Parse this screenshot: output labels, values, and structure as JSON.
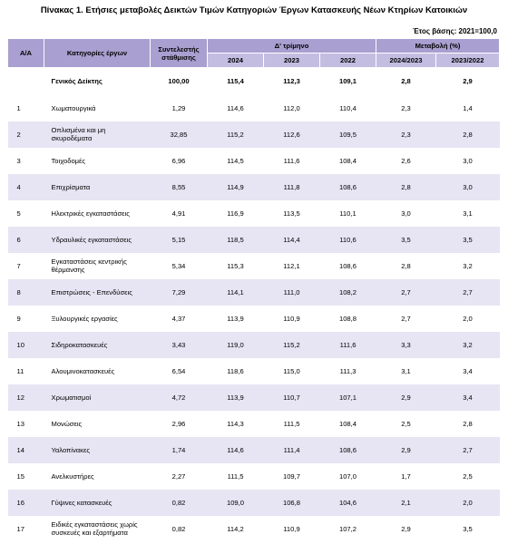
{
  "title": "Πίνακας 1. Ετήσιες μεταβολές Δεικτών Τιμών Κατηγοριών Έργων Κατασκευής Νέων Κτηρίων Κατοικιών",
  "base_note": "Έτος βάσης: 2021=100,0",
  "table": {
    "header": {
      "aa": "Α/Α",
      "category": "Κατηγορίες έργων",
      "weight": "Συντελεστής στάθμισης",
      "quarter": "Δ' τρίμηνο",
      "change": "Μεταβολή (%)",
      "years": [
        "2024",
        "2023",
        "2022"
      ],
      "periods": [
        "2024/2023",
        "2023/2022"
      ]
    },
    "general": [
      "Γενικός Δείκτης",
      "100,00",
      "115,4",
      "112,3",
      "109,1",
      "2,8",
      "2,9"
    ],
    "rows": [
      [
        "1",
        "Χωματουργικά",
        "1,29",
        "114,6",
        "112,0",
        "110,4",
        "2,3",
        "1,4"
      ],
      [
        "2",
        "Οπλισμένα και μη σκυροδέματα",
        "32,85",
        "115,2",
        "112,6",
        "109,5",
        "2,3",
        "2,8"
      ],
      [
        "3",
        "Τοιχοδομές",
        "6,96",
        "114,5",
        "111,6",
        "108,4",
        "2,6",
        "3,0"
      ],
      [
        "4",
        "Επιχρίσματα",
        "8,55",
        "114,9",
        "111,8",
        "108,6",
        "2,8",
        "3,0"
      ],
      [
        "5",
        "Ηλεκτρικές εγκαταστάσεις",
        "4,91",
        "116,9",
        "113,5",
        "110,1",
        "3,0",
        "3,1"
      ],
      [
        "6",
        "Υδραυλικές εγκαταστάσεις",
        "5,15",
        "118,5",
        "114,4",
        "110,6",
        "3,5",
        "3,5"
      ],
      [
        "7",
        "Εγκαταστάσεις κεντρικής θέρμανσης",
        "5,34",
        "115,3",
        "112,1",
        "108,6",
        "2,8",
        "3,2"
      ],
      [
        "8",
        "Επιστρώσεις - Επενδύσεις",
        "7,29",
        "114,1",
        "111,0",
        "108,2",
        "2,7",
        "2,7"
      ],
      [
        "9",
        "Ξυλουργικές εργασίες",
        "4,37",
        "113,9",
        "110,9",
        "108,8",
        "2,7",
        "2,0"
      ],
      [
        "10",
        "Σιδηροκατασκευές",
        "3,43",
        "119,0",
        "115,2",
        "111,6",
        "3,3",
        "3,2"
      ],
      [
        "11",
        "Αλουμινοκατασκευές",
        "6,54",
        "118,6",
        "115,0",
        "111,3",
        "3,1",
        "3,4"
      ],
      [
        "12",
        "Χρωματισμοί",
        "4,72",
        "113,9",
        "110,7",
        "107,1",
        "2,9",
        "3,4"
      ],
      [
        "13",
        "Μονώσεις",
        "2,96",
        "114,3",
        "111,5",
        "108,4",
        "2,5",
        "2,8"
      ],
      [
        "14",
        "Υαλοπίνακες",
        "1,74",
        "114,6",
        "111,4",
        "108,6",
        "2,9",
        "2,7"
      ],
      [
        "15",
        "Ανελκυστήρες",
        "2,27",
        "111,5",
        "109,7",
        "107,0",
        "1,7",
        "2,5"
      ],
      [
        "16",
        "Γύψινες κατασκευές",
        "0,82",
        "109,0",
        "106,8",
        "104,6",
        "2,1",
        "2,0"
      ],
      [
        "17",
        "Ειδικές εγκαταστάσεις χωρίς συσκευές και εξαρτήματα",
        "0,82",
        "114,2",
        "110,9",
        "107,2",
        "2,9",
        "3,5"
      ]
    ]
  }
}
